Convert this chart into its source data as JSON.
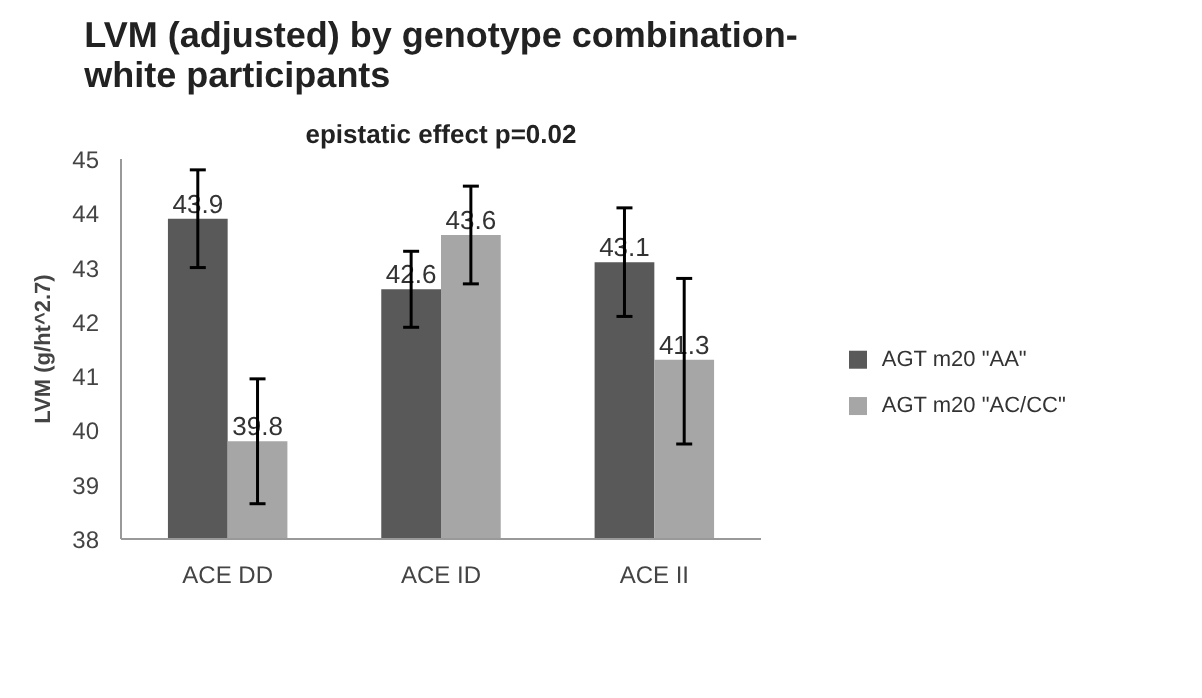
{
  "chart_data": {
    "type": "bar",
    "title": "LVM (adjusted) by genotype combination-\nwhite participants",
    "subtitle": "epistatic effect p=0.02",
    "ylabel": "LVM (g/ht^2.7)",
    "categories": [
      "ACE DD",
      "ACE ID",
      "ACE II"
    ],
    "series": [
      {
        "name": "AGT m20 \"AA\"",
        "color": "#595959",
        "values": [
          43.9,
          42.6,
          43.1
        ],
        "errors": [
          [
            43.0,
            44.8
          ],
          [
            41.9,
            43.3
          ],
          [
            42.1,
            44.1
          ]
        ]
      },
      {
        "name": "AGT m20 \"AC/CC\"",
        "color": "#a6a6a6",
        "values": [
          39.8,
          43.6,
          41.3
        ],
        "errors": [
          [
            38.65,
            40.95
          ],
          [
            42.7,
            44.5
          ],
          [
            39.75,
            42.8
          ]
        ]
      }
    ],
    "ylim": [
      38,
      45
    ],
    "yticks": [
      38,
      39,
      40,
      41,
      42,
      43,
      44,
      45
    ],
    "data_labels": true,
    "grid": false,
    "legend": "right"
  }
}
